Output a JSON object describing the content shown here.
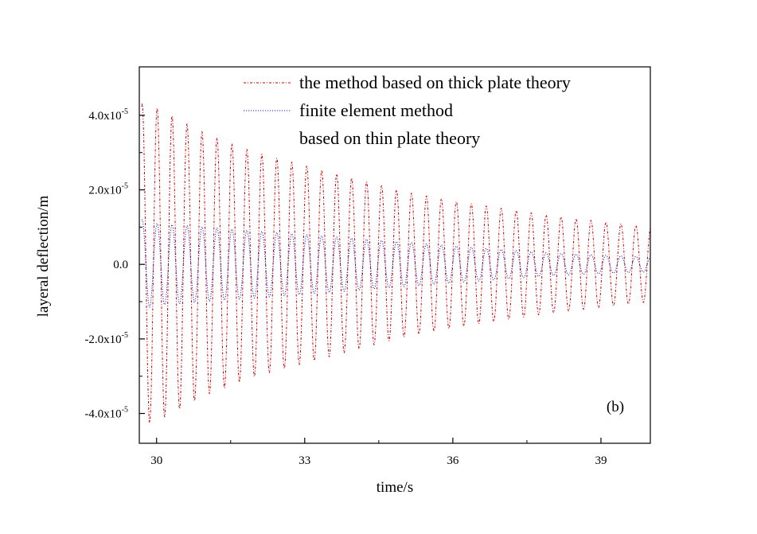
{
  "chart_data": {
    "type": "line",
    "xlabel": "time/s",
    "ylabel": "layeral deflection/m",
    "xlim": [
      29.65,
      40.0
    ],
    "ylim": [
      -4.8e-05,
      5.3e-05
    ],
    "x_ticks": [
      30,
      33,
      36,
      39
    ],
    "x_tick_labels": [
      "30",
      "33",
      "36",
      "39"
    ],
    "y_ticks": [
      -4e-05,
      -2e-05,
      0,
      2e-05,
      4e-05
    ],
    "y_tick_labels": [
      {
        "base": "-4.0x10",
        "exp": "-5"
      },
      {
        "base": "-2.0x10",
        "exp": "-5"
      },
      {
        "base": "0.0",
        "exp": ""
      },
      {
        "base": "2.0x10",
        "exp": "-5"
      },
      {
        "base": "4.0x10",
        "exp": "-5"
      }
    ],
    "grid": false,
    "legend_position": "top-right",
    "annotation": "(b)",
    "series": [
      {
        "name": "the method based on thick plate theory",
        "color": "#cc0000",
        "line_style": "dash-dot",
        "frequency_hz": 3.3,
        "x": [
          29.7,
          30.0,
          31.0,
          32.0,
          33.0,
          34.0,
          35.0,
          36.0,
          37.0,
          38.0,
          39.0,
          40.0
        ],
        "amplitude": [
          4.3e-05,
          4.2e-05,
          3.5e-05,
          3e-05,
          2.65e-05,
          2.3e-05,
          1.95e-05,
          1.7e-05,
          1.5e-05,
          1.3e-05,
          1.15e-05,
          1e-05
        ]
      },
      {
        "name": "finite element method",
        "color": "#2222cc",
        "line_style": "dotted",
        "frequency_hz": 3.3,
        "x": [
          29.7,
          30.0,
          31.0,
          32.0,
          33.0,
          34.0,
          35.0,
          36.0,
          37.0,
          38.0,
          39.0,
          40.0
        ],
        "amplitude": [
          1.2e-05,
          1.1e-05,
          1e-05,
          9e-06,
          8e-06,
          7e-06,
          6e-06,
          5e-06,
          4e-06,
          3e-06,
          2.5e-06,
          2e-06
        ]
      },
      {
        "name": "based on thin plate theory",
        "color": "#000000",
        "line_style": "none",
        "x": [],
        "amplitude": []
      }
    ]
  }
}
